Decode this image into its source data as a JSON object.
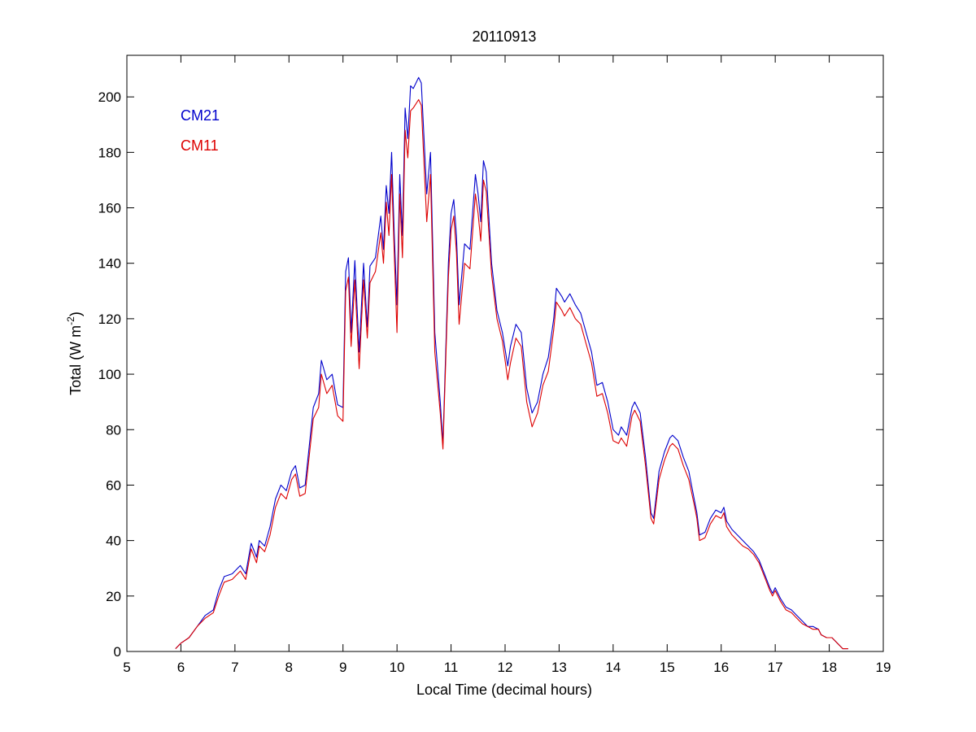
{
  "chart_data": {
    "type": "line",
    "title": "20110913",
    "xlabel": "Local Time (decimal hours)",
    "ylabel": "Total (W m",
    "ylabel_exponent": "-2",
    "ylabel_suffix": ")",
    "xlim": [
      5,
      19
    ],
    "ylim": [
      0,
      215
    ],
    "xticks": [
      5,
      6,
      7,
      8,
      9,
      10,
      11,
      12,
      13,
      14,
      15,
      16,
      17,
      18,
      19
    ],
    "yticks": [
      0,
      20,
      40,
      60,
      80,
      100,
      120,
      140,
      160,
      180,
      200
    ],
    "grid": false,
    "legend_position": "top-left",
    "series": [
      {
        "name": "CM21",
        "color": "#0000cc",
        "points": [
          [
            5.9,
            1
          ],
          [
            6.0,
            3
          ],
          [
            6.15,
            5
          ],
          [
            6.3,
            9
          ],
          [
            6.45,
            13
          ],
          [
            6.6,
            15
          ],
          [
            6.7,
            22
          ],
          [
            6.8,
            27
          ],
          [
            6.95,
            28
          ],
          [
            7.1,
            31
          ],
          [
            7.2,
            28
          ],
          [
            7.3,
            39
          ],
          [
            7.4,
            34
          ],
          [
            7.45,
            40
          ],
          [
            7.55,
            38
          ],
          [
            7.65,
            45
          ],
          [
            7.75,
            55
          ],
          [
            7.85,
            60
          ],
          [
            7.95,
            58
          ],
          [
            8.05,
            65
          ],
          [
            8.12,
            67
          ],
          [
            8.2,
            59
          ],
          [
            8.3,
            60
          ],
          [
            8.45,
            88
          ],
          [
            8.55,
            93
          ],
          [
            8.6,
            105
          ],
          [
            8.7,
            98
          ],
          [
            8.8,
            100
          ],
          [
            8.9,
            89
          ],
          [
            9.0,
            88
          ],
          [
            9.05,
            137
          ],
          [
            9.1,
            142
          ],
          [
            9.15,
            115
          ],
          [
            9.22,
            141
          ],
          [
            9.3,
            108
          ],
          [
            9.38,
            140
          ],
          [
            9.45,
            117
          ],
          [
            9.5,
            139
          ],
          [
            9.6,
            142
          ],
          [
            9.7,
            157
          ],
          [
            9.75,
            145
          ],
          [
            9.8,
            168
          ],
          [
            9.85,
            158
          ],
          [
            9.9,
            180
          ],
          [
            9.95,
            150
          ],
          [
            10.0,
            125
          ],
          [
            10.05,
            172
          ],
          [
            10.1,
            150
          ],
          [
            10.15,
            196
          ],
          [
            10.2,
            185
          ],
          [
            10.25,
            204
          ],
          [
            10.3,
            203
          ],
          [
            10.4,
            207
          ],
          [
            10.45,
            205
          ],
          [
            10.55,
            165
          ],
          [
            10.62,
            180
          ],
          [
            10.7,
            115
          ],
          [
            10.8,
            90
          ],
          [
            10.85,
            75
          ],
          [
            10.95,
            140
          ],
          [
            11.0,
            158
          ],
          [
            11.05,
            163
          ],
          [
            11.1,
            150
          ],
          [
            11.15,
            125
          ],
          [
            11.25,
            147
          ],
          [
            11.35,
            145
          ],
          [
            11.45,
            172
          ],
          [
            11.5,
            165
          ],
          [
            11.55,
            155
          ],
          [
            11.6,
            177
          ],
          [
            11.65,
            173
          ],
          [
            11.75,
            140
          ],
          [
            11.85,
            123
          ],
          [
            11.95,
            115
          ],
          [
            12.05,
            103
          ],
          [
            12.1,
            110
          ],
          [
            12.2,
            118
          ],
          [
            12.3,
            115
          ],
          [
            12.4,
            95
          ],
          [
            12.5,
            86
          ],
          [
            12.6,
            90
          ],
          [
            12.7,
            100
          ],
          [
            12.8,
            106
          ],
          [
            12.9,
            120
          ],
          [
            12.95,
            131
          ],
          [
            13.05,
            128
          ],
          [
            13.1,
            126
          ],
          [
            13.2,
            129
          ],
          [
            13.3,
            125
          ],
          [
            13.4,
            122
          ],
          [
            13.5,
            115
          ],
          [
            13.6,
            108
          ],
          [
            13.7,
            96
          ],
          [
            13.8,
            97
          ],
          [
            13.9,
            90
          ],
          [
            14.0,
            80
          ],
          [
            14.1,
            78
          ],
          [
            14.15,
            81
          ],
          [
            14.25,
            78
          ],
          [
            14.35,
            88
          ],
          [
            14.4,
            90
          ],
          [
            14.5,
            86
          ],
          [
            14.6,
            70
          ],
          [
            14.7,
            50
          ],
          [
            14.75,
            48
          ],
          [
            14.85,
            65
          ],
          [
            14.95,
            72
          ],
          [
            15.05,
            77
          ],
          [
            15.1,
            78
          ],
          [
            15.2,
            76
          ],
          [
            15.3,
            70
          ],
          [
            15.4,
            65
          ],
          [
            15.5,
            55
          ],
          [
            15.55,
            50
          ],
          [
            15.6,
            42
          ],
          [
            15.7,
            43
          ],
          [
            15.8,
            48
          ],
          [
            15.9,
            51
          ],
          [
            16.0,
            50
          ],
          [
            16.05,
            52
          ],
          [
            16.1,
            47
          ],
          [
            16.2,
            44
          ],
          [
            16.3,
            42
          ],
          [
            16.4,
            40
          ],
          [
            16.5,
            38
          ],
          [
            16.6,
            36
          ],
          [
            16.7,
            33
          ],
          [
            16.8,
            28
          ],
          [
            16.9,
            23
          ],
          [
            16.95,
            21
          ],
          [
            17.0,
            23
          ],
          [
            17.1,
            19
          ],
          [
            17.2,
            16
          ],
          [
            17.3,
            15
          ],
          [
            17.4,
            13
          ],
          [
            17.5,
            11
          ],
          [
            17.6,
            9
          ],
          [
            17.7,
            9
          ],
          [
            17.8,
            8
          ],
          [
            17.85,
            6
          ],
          [
            17.95,
            5
          ],
          [
            18.05,
            5
          ],
          [
            18.15,
            3
          ],
          [
            18.25,
            1
          ],
          [
            18.35,
            1
          ]
        ]
      },
      {
        "name": "CM11",
        "color": "#dd0000",
        "points": [
          [
            5.9,
            1
          ],
          [
            6.0,
            3
          ],
          [
            6.15,
            5
          ],
          [
            6.3,
            9
          ],
          [
            6.45,
            12
          ],
          [
            6.6,
            14
          ],
          [
            6.7,
            20
          ],
          [
            6.8,
            25
          ],
          [
            6.95,
            26
          ],
          [
            7.1,
            29
          ],
          [
            7.2,
            26
          ],
          [
            7.3,
            37
          ],
          [
            7.4,
            32
          ],
          [
            7.45,
            38
          ],
          [
            7.55,
            36
          ],
          [
            7.65,
            42
          ],
          [
            7.75,
            52
          ],
          [
            7.85,
            57
          ],
          [
            7.95,
            55
          ],
          [
            8.05,
            62
          ],
          [
            8.12,
            64
          ],
          [
            8.2,
            56
          ],
          [
            8.3,
            57
          ],
          [
            8.45,
            84
          ],
          [
            8.55,
            88
          ],
          [
            8.6,
            100
          ],
          [
            8.7,
            93
          ],
          [
            8.8,
            96
          ],
          [
            8.9,
            85
          ],
          [
            9.0,
            83
          ],
          [
            9.05,
            130
          ],
          [
            9.1,
            135
          ],
          [
            9.15,
            110
          ],
          [
            9.22,
            134
          ],
          [
            9.3,
            102
          ],
          [
            9.38,
            134
          ],
          [
            9.45,
            113
          ],
          [
            9.5,
            133
          ],
          [
            9.6,
            137
          ],
          [
            9.7,
            151
          ],
          [
            9.75,
            140
          ],
          [
            9.8,
            162
          ],
          [
            9.85,
            150
          ],
          [
            9.9,
            172
          ],
          [
            9.95,
            143
          ],
          [
            10.0,
            115
          ],
          [
            10.05,
            165
          ],
          [
            10.1,
            142
          ],
          [
            10.15,
            188
          ],
          [
            10.2,
            178
          ],
          [
            10.25,
            195
          ],
          [
            10.3,
            196
          ],
          [
            10.4,
            199
          ],
          [
            10.45,
            197
          ],
          [
            10.55,
            155
          ],
          [
            10.62,
            172
          ],
          [
            10.7,
            108
          ],
          [
            10.8,
            86
          ],
          [
            10.85,
            73
          ],
          [
            10.95,
            135
          ],
          [
            11.0,
            152
          ],
          [
            11.05,
            157
          ],
          [
            11.1,
            144
          ],
          [
            11.15,
            118
          ],
          [
            11.25,
            140
          ],
          [
            11.35,
            138
          ],
          [
            11.45,
            165
          ],
          [
            11.5,
            158
          ],
          [
            11.55,
            148
          ],
          [
            11.6,
            170
          ],
          [
            11.65,
            166
          ],
          [
            11.75,
            136
          ],
          [
            11.85,
            120
          ],
          [
            11.95,
            112
          ],
          [
            12.05,
            98
          ],
          [
            12.1,
            104
          ],
          [
            12.2,
            113
          ],
          [
            12.3,
            110
          ],
          [
            12.4,
            90
          ],
          [
            12.5,
            81
          ],
          [
            12.6,
            86
          ],
          [
            12.7,
            96
          ],
          [
            12.8,
            101
          ],
          [
            12.9,
            116
          ],
          [
            12.95,
            126
          ],
          [
            13.05,
            123
          ],
          [
            13.1,
            121
          ],
          [
            13.2,
            124
          ],
          [
            13.3,
            120
          ],
          [
            13.4,
            118
          ],
          [
            13.5,
            111
          ],
          [
            13.6,
            104
          ],
          [
            13.7,
            92
          ],
          [
            13.8,
            93
          ],
          [
            13.9,
            86
          ],
          [
            14.0,
            76
          ],
          [
            14.1,
            75
          ],
          [
            14.15,
            77
          ],
          [
            14.25,
            74
          ],
          [
            14.35,
            85
          ],
          [
            14.4,
            87
          ],
          [
            14.5,
            83
          ],
          [
            14.6,
            67
          ],
          [
            14.7,
            48
          ],
          [
            14.75,
            46
          ],
          [
            14.85,
            62
          ],
          [
            14.95,
            69
          ],
          [
            15.05,
            74
          ],
          [
            15.1,
            75
          ],
          [
            15.2,
            73
          ],
          [
            15.3,
            67
          ],
          [
            15.4,
            62
          ],
          [
            15.5,
            53
          ],
          [
            15.55,
            48
          ],
          [
            15.6,
            40
          ],
          [
            15.7,
            41
          ],
          [
            15.8,
            46
          ],
          [
            15.9,
            49
          ],
          [
            16.0,
            48
          ],
          [
            16.05,
            50
          ],
          [
            16.1,
            45
          ],
          [
            16.2,
            42
          ],
          [
            16.3,
            40
          ],
          [
            16.4,
            38
          ],
          [
            16.5,
            37
          ],
          [
            16.6,
            35
          ],
          [
            16.7,
            32
          ],
          [
            16.8,
            27
          ],
          [
            16.9,
            22
          ],
          [
            16.95,
            20
          ],
          [
            17.0,
            22
          ],
          [
            17.1,
            18
          ],
          [
            17.2,
            15
          ],
          [
            17.3,
            14
          ],
          [
            17.4,
            12
          ],
          [
            17.5,
            10
          ],
          [
            17.6,
            9
          ],
          [
            17.7,
            8
          ],
          [
            17.8,
            8
          ],
          [
            17.85,
            6
          ],
          [
            17.95,
            5
          ],
          [
            18.05,
            5
          ],
          [
            18.15,
            3
          ],
          [
            18.25,
            1
          ],
          [
            18.35,
            1
          ]
        ]
      }
    ]
  }
}
